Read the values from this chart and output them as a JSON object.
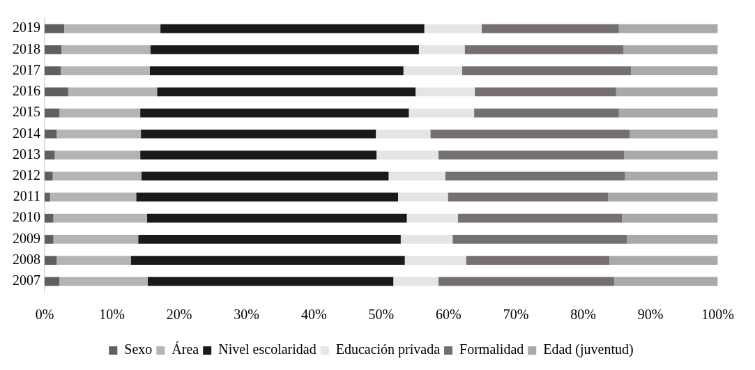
{
  "chart_data": {
    "type": "bar",
    "orientation": "horizontal",
    "stacked": true,
    "categories": [
      "2019",
      "2018",
      "2017",
      "2016",
      "2015",
      "2014",
      "2013",
      "2012",
      "2011",
      "2010",
      "2009",
      "2008",
      "2007"
    ],
    "series": [
      {
        "name": "Sexo",
        "color": "#5f5f5f",
        "values": [
          2.9,
          2.5,
          2.4,
          3.5,
          2.2,
          1.8,
          1.5,
          1.2,
          0.8,
          1.3,
          1.3,
          1.8,
          2.2
        ]
      },
      {
        "name": "Área",
        "color": "#b4b4b4",
        "values": [
          14.3,
          13.2,
          13.2,
          13.2,
          12.0,
          12.5,
          12.7,
          13.2,
          12.8,
          13.9,
          12.6,
          11.0,
          13.1
        ]
      },
      {
        "name": "Nivel escolaridad",
        "color": "#1a1a1a",
        "values": [
          39.2,
          39.9,
          37.7,
          38.4,
          39.9,
          34.9,
          35.1,
          36.7,
          38.9,
          38.6,
          39.0,
          40.7,
          36.5
        ]
      },
      {
        "name": "Educación privada",
        "color": "#e5e5e5",
        "values": [
          8.5,
          6.8,
          8.7,
          8.8,
          9.7,
          8.1,
          9.2,
          8.4,
          7.4,
          7.6,
          7.7,
          9.1,
          6.7
        ]
      },
      {
        "name": "Formalidad",
        "color": "#75706f",
        "values": [
          20.4,
          23.6,
          25.1,
          21.0,
          21.5,
          29.6,
          27.6,
          26.7,
          23.8,
          24.4,
          25.9,
          21.3,
          26.1
        ]
      },
      {
        "name": "Edad (juventud)",
        "color": "#a9a9a9",
        "values": [
          14.7,
          14.0,
          12.9,
          15.1,
          14.7,
          13.1,
          13.9,
          13.8,
          16.3,
          14.2,
          13.5,
          16.1,
          15.4
        ]
      }
    ],
    "xlim": [
      0,
      100
    ],
    "xticks": [
      {
        "value": 0,
        "label": "0%"
      },
      {
        "value": 10,
        "label": "10%"
      },
      {
        "value": 20,
        "label": "20%"
      },
      {
        "value": 30,
        "label": "30%"
      },
      {
        "value": 40,
        "label": "40%"
      },
      {
        "value": 50,
        "label": "50%"
      },
      {
        "value": 60,
        "label": "60%"
      },
      {
        "value": 70,
        "label": "70%"
      },
      {
        "value": 80,
        "label": "80%"
      },
      {
        "value": 90,
        "label": "90%"
      },
      {
        "value": 100,
        "label": "100%"
      }
    ],
    "grid": false,
    "legend": "bottom"
  }
}
